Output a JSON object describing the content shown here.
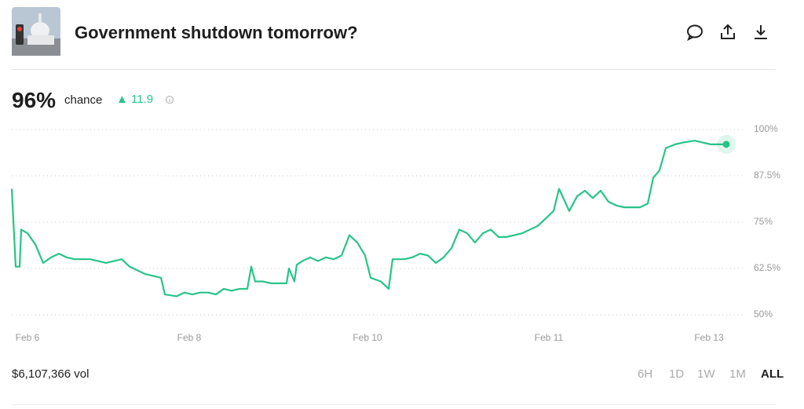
{
  "header": {
    "title": "Government shutdown tomorrow?"
  },
  "summary": {
    "chance": "96%",
    "chance_label": "chance",
    "change": 11.9
  },
  "footer": {
    "volume": "$6,107,366 vol",
    "ranges": [
      "6H",
      "1D",
      "1W",
      "1M",
      "ALL"
    ],
    "active_range": "ALL"
  },
  "chart_data": {
    "type": "line",
    "x": [
      0,
      0.5,
      1,
      1.2,
      2,
      3,
      4,
      5,
      6,
      7,
      8,
      9,
      10,
      11,
      12,
      13,
      14,
      15,
      16,
      17,
      18,
      19,
      19.5,
      21,
      22,
      23,
      24,
      25,
      26,
      27,
      28,
      29,
      30,
      30.5,
      31,
      32,
      33,
      34,
      35,
      35.3,
      36,
      36.3,
      37,
      38,
      39,
      40,
      41,
      42,
      43,
      44,
      45,
      45.7,
      47,
      48,
      48.5,
      49,
      50,
      51,
      52,
      53,
      54,
      55,
      56,
      57,
      58,
      59,
      60,
      61,
      62,
      63,
      64,
      65,
      66,
      67,
      68,
      69,
      69.7,
      71,
      72,
      73,
      74,
      75,
      76,
      77,
      78,
      79,
      80,
      81,
      81.7,
      82.5,
      83.3,
      84.5,
      85.5,
      87,
      88,
      89,
      91
    ],
    "series": [
      {
        "name": "chance",
        "color": "#27c488",
        "values": [
          84,
          63,
          63,
          73,
          72,
          69,
          64,
          65.5,
          66.5,
          65.5,
          65,
          65,
          65,
          64.5,
          64,
          64.5,
          65,
          63,
          62,
          61,
          60.5,
          60,
          55.5,
          55,
          56,
          55.5,
          56,
          56,
          55.5,
          57,
          56.5,
          57,
          57,
          63,
          59,
          59,
          58.5,
          58.5,
          58.5,
          62.5,
          59,
          63.5,
          64.5,
          65.5,
          64.5,
          65.5,
          65,
          66,
          71.5,
          69.5,
          66,
          60,
          59,
          57,
          65,
          65,
          65,
          65.5,
          66.5,
          66,
          64,
          65.5,
          68,
          73,
          72,
          69.5,
          72,
          73,
          71,
          71,
          71.5,
          72,
          73,
          74,
          76,
          78,
          84,
          78,
          82,
          83.5,
          81.5,
          83.5,
          80.5,
          79.5,
          79,
          79,
          79,
          80,
          87,
          89,
          95,
          96,
          96.5,
          97,
          96.5,
          96,
          96
        ]
      }
    ],
    "xlim": [
      0,
      93.5
    ],
    "xticks": [
      {
        "value": 2,
        "label": "Feb 6"
      },
      {
        "value": 22.6,
        "label": "Feb 8"
      },
      {
        "value": 45.3,
        "label": "Feb 10"
      },
      {
        "value": 68.4,
        "label": "Feb 11"
      },
      {
        "value": 88.8,
        "label": "Feb 13"
      }
    ],
    "ylim": [
      50,
      100
    ],
    "yticks": [
      {
        "value": 50,
        "label": "50%"
      },
      {
        "value": 62.5,
        "label": "62.5%"
      },
      {
        "value": 75,
        "label": "75%"
      },
      {
        "value": 87.5,
        "label": "87.5%"
      },
      {
        "value": 100,
        "label": "100%"
      }
    ],
    "grid": true
  }
}
